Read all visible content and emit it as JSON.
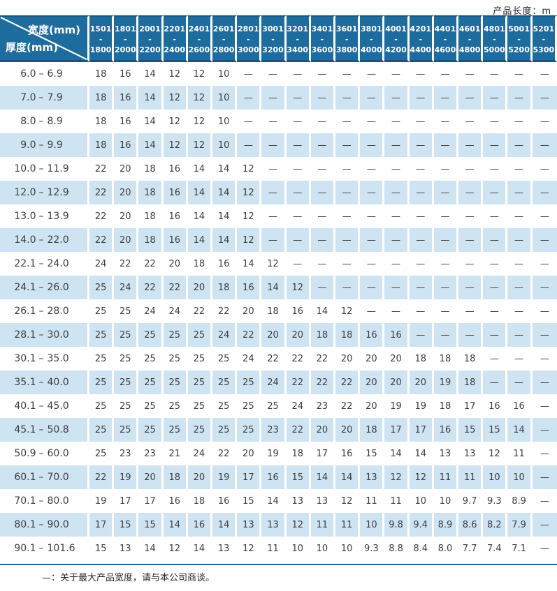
{
  "page": {
    "unit_label": "产品长度：m",
    "footer_note": "—：关于最大产品宽度，请与本公司商谈。"
  },
  "table": {
    "corner": {
      "width_label": "宽度(mm)",
      "thickness_label": "厚度(mm)"
    },
    "range_separator": "–",
    "dash": "—",
    "columns": [
      {
        "line1": "1501",
        "line2": "- 1800"
      },
      {
        "line1": "1801",
        "line2": "- 2000"
      },
      {
        "line1": "2001",
        "line2": "- 2200"
      },
      {
        "line1": "2201",
        "line2": "- 2400"
      },
      {
        "line1": "2401",
        "line2": "- 2600"
      },
      {
        "line1": "2601",
        "line2": "- 2800"
      },
      {
        "line1": "2801",
        "line2": "- 3000"
      },
      {
        "line1": "3001",
        "line2": "- 3200"
      },
      {
        "line1": "3201",
        "line2": "- 3400"
      },
      {
        "line1": "3401",
        "line2": "- 3600"
      },
      {
        "line1": "3601",
        "line2": "- 3800"
      },
      {
        "line1": "3801",
        "line2": "- 4000"
      },
      {
        "line1": "4001",
        "line2": "- 4200"
      },
      {
        "line1": "4201",
        "line2": "- 4400"
      },
      {
        "line1": "4401",
        "line2": "- 4600"
      },
      {
        "line1": "4601",
        "line2": "- 4800"
      },
      {
        "line1": "4801",
        "line2": "- 5000"
      },
      {
        "line1": "5001",
        "line2": "- 5200"
      },
      {
        "line1": "5201",
        "line2": "- 5300"
      }
    ],
    "rows": [
      {
        "min": "6.0",
        "max": "6.9",
        "values": [
          "18",
          "16",
          "14",
          "12",
          "12",
          "10",
          "—",
          "—",
          "—",
          "—",
          "—",
          "—",
          "—",
          "—",
          "—",
          "—",
          "—",
          "—",
          "—"
        ]
      },
      {
        "min": "7.0",
        "max": "7.9",
        "values": [
          "18",
          "16",
          "14",
          "12",
          "12",
          "10",
          "—",
          "—",
          "—",
          "—",
          "—",
          "—",
          "—",
          "—",
          "—",
          "—",
          "—",
          "—",
          "—"
        ]
      },
      {
        "min": "8.0",
        "max": "8.9",
        "values": [
          "18",
          "16",
          "14",
          "12",
          "12",
          "10",
          "—",
          "—",
          "—",
          "—",
          "—",
          "—",
          "—",
          "—",
          "—",
          "—",
          "—",
          "—",
          "—"
        ]
      },
      {
        "min": "9.0",
        "max": "9.9",
        "values": [
          "18",
          "16",
          "14",
          "12",
          "12",
          "10",
          "—",
          "—",
          "—",
          "—",
          "—",
          "—",
          "—",
          "—",
          "—",
          "—",
          "—",
          "—",
          "—"
        ]
      },
      {
        "min": "10.0",
        "max": "11.9",
        "values": [
          "22",
          "20",
          "18",
          "16",
          "14",
          "14",
          "12",
          "—",
          "—",
          "—",
          "—",
          "—",
          "—",
          "—",
          "—",
          "—",
          "—",
          "—",
          "—"
        ]
      },
      {
        "min": "12.0",
        "max": "12.9",
        "values": [
          "22",
          "20",
          "18",
          "16",
          "14",
          "14",
          "12",
          "—",
          "—",
          "—",
          "—",
          "—",
          "—",
          "—",
          "—",
          "—",
          "—",
          "—",
          "—"
        ]
      },
      {
        "min": "13.0",
        "max": "13.9",
        "values": [
          "22",
          "20",
          "18",
          "16",
          "14",
          "14",
          "12",
          "—",
          "—",
          "—",
          "—",
          "—",
          "—",
          "—",
          "—",
          "—",
          "—",
          "—",
          "—"
        ]
      },
      {
        "min": "14.0",
        "max": "22.0",
        "values": [
          "22",
          "20",
          "18",
          "16",
          "14",
          "14",
          "12",
          "—",
          "—",
          "—",
          "—",
          "—",
          "—",
          "—",
          "—",
          "—",
          "—",
          "—",
          "—"
        ]
      },
      {
        "min": "22.1",
        "max": "24.0",
        "values": [
          "24",
          "22",
          "22",
          "20",
          "18",
          "16",
          "14",
          "12",
          "—",
          "—",
          "—",
          "—",
          "—",
          "—",
          "—",
          "—",
          "—",
          "—",
          "—"
        ]
      },
      {
        "min": "24.1",
        "max": "26.0",
        "values": [
          "25",
          "24",
          "22",
          "22",
          "20",
          "18",
          "16",
          "14",
          "12",
          "—",
          "—",
          "—",
          "—",
          "—",
          "—",
          "—",
          "—",
          "—",
          "—"
        ]
      },
      {
        "min": "26.1",
        "max": "28.0",
        "values": [
          "25",
          "25",
          "24",
          "24",
          "22",
          "22",
          "20",
          "18",
          "16",
          "14",
          "12",
          "—",
          "—",
          "—",
          "—",
          "—",
          "—",
          "—",
          "—"
        ]
      },
      {
        "min": "28.1",
        "max": "30.0",
        "values": [
          "25",
          "25",
          "25",
          "25",
          "25",
          "24",
          "22",
          "20",
          "20",
          "18",
          "18",
          "16",
          "16",
          "—",
          "—",
          "—",
          "—",
          "—",
          "—"
        ]
      },
      {
        "min": "30.1",
        "max": "35.0",
        "values": [
          "25",
          "25",
          "25",
          "25",
          "25",
          "25",
          "24",
          "22",
          "22",
          "22",
          "20",
          "20",
          "20",
          "18",
          "18",
          "18",
          "—",
          "—",
          "—"
        ]
      },
      {
        "min": "35.1",
        "max": "40.0",
        "values": [
          "25",
          "25",
          "25",
          "25",
          "25",
          "25",
          "25",
          "24",
          "22",
          "22",
          "22",
          "20",
          "20",
          "20",
          "19",
          "18",
          "—",
          "—",
          "—"
        ]
      },
      {
        "min": "40.1",
        "max": "45.0",
        "values": [
          "25",
          "25",
          "25",
          "25",
          "25",
          "25",
          "25",
          "25",
          "24",
          "23",
          "22",
          "20",
          "19",
          "19",
          "18",
          "17",
          "16",
          "16",
          "—"
        ]
      },
      {
        "min": "45.1",
        "max": "50.8",
        "values": [
          "25",
          "25",
          "25",
          "25",
          "25",
          "25",
          "25",
          "23",
          "22",
          "20",
          "20",
          "18",
          "17",
          "17",
          "16",
          "15",
          "15",
          "14",
          "—"
        ]
      },
      {
        "min": "50.9",
        "max": "60.0",
        "values": [
          "25",
          "23",
          "23",
          "21",
          "24",
          "22",
          "20",
          "19",
          "18",
          "17",
          "16",
          "15",
          "14",
          "14",
          "13",
          "13",
          "12",
          "11",
          "—"
        ]
      },
      {
        "min": "60.1",
        "max": "70.0",
        "values": [
          "22",
          "19",
          "20",
          "18",
          "20",
          "19",
          "17",
          "16",
          "15",
          "14",
          "14",
          "13",
          "12",
          "12",
          "11",
          "11",
          "10",
          "10",
          "—"
        ]
      },
      {
        "min": "70.1",
        "max": "80.0",
        "values": [
          "19",
          "17",
          "17",
          "16",
          "18",
          "16",
          "15",
          "14",
          "13",
          "13",
          "12",
          "11",
          "11",
          "10",
          "10",
          "9.7",
          "9.3",
          "8.9",
          "—"
        ]
      },
      {
        "min": "80.1",
        "max": "90.0",
        "values": [
          "17",
          "15",
          "15",
          "14",
          "16",
          "14",
          "13",
          "13",
          "12",
          "11",
          "11",
          "10",
          "9.8",
          "9.4",
          "8.9",
          "8.6",
          "8.2",
          "7.9",
          "—"
        ]
      },
      {
        "min": "90.1",
        "max": "101.6",
        "values": [
          "15",
          "13",
          "14",
          "12",
          "14",
          "13",
          "12",
          "11",
          "10",
          "10",
          "10",
          "9.3",
          "8.8",
          "8.4",
          "8.0",
          "7.7",
          "7.4",
          "7.1",
          "—"
        ]
      }
    ]
  },
  "colors": {
    "header_blue": "#1e6b9e",
    "header_edge": "#15567f",
    "stripe_blue": "#cfe4f3",
    "text": "#3d3d3d",
    "rule_blue": "#1d6292"
  }
}
